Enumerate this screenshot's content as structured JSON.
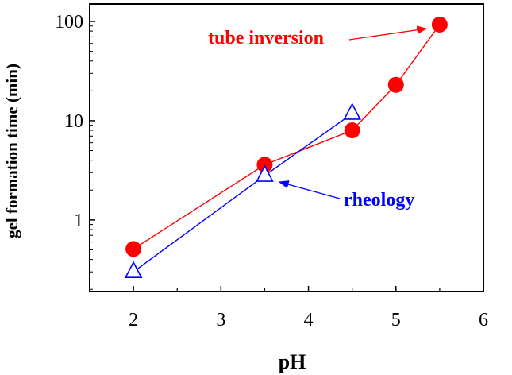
{
  "chart_data": {
    "type": "line",
    "title": "",
    "xlabel": "pH",
    "ylabel": "gel formation time (min)",
    "xlim": [
      1.5,
      6
    ],
    "ylim": [
      0.19,
      150
    ],
    "yscale": "log",
    "xticks": [
      2,
      3,
      4,
      5,
      6
    ],
    "yticks": [
      1,
      10,
      100
    ],
    "ytick_labels": [
      "1",
      "10",
      "100"
    ],
    "xtick_labels": [
      "2",
      "3",
      "4",
      "5",
      "6"
    ],
    "grid": false,
    "series": [
      {
        "name": "tube inversion",
        "color": "#ff0000",
        "marker": "filled-circle",
        "x": [
          2,
          3.5,
          4.5,
          5,
          5.5
        ],
        "y": [
          0.51,
          3.6,
          8.0,
          23,
          93
        ]
      },
      {
        "name": "rheology",
        "color": "#0000ff",
        "marker": "open-triangle",
        "x": [
          2,
          3.5,
          4.5
        ],
        "y": [
          0.3,
          2.8,
          11.8
        ]
      }
    ],
    "annotations": [
      {
        "text": "tube inversion",
        "color": "#ff0000",
        "points_to": [
          5.5,
          93
        ]
      },
      {
        "text": "rheology",
        "color": "#0000ff",
        "points_to": [
          3.5,
          2.8
        ]
      }
    ]
  }
}
